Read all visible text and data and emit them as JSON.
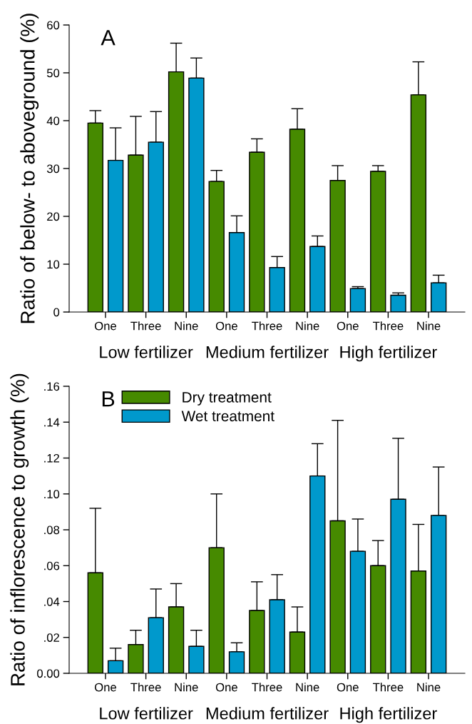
{
  "chart_data": [
    {
      "type": "bar",
      "ylabel": "Ratio of below- to aboveground (%)",
      "categories": [
        "One",
        "Three",
        "Nine",
        "One",
        "Three",
        "Nine",
        "One",
        "Three",
        "Nine"
      ],
      "series": [
        {
          "color": "#468a00",
          "values": [
            39.5,
            32.8,
            50.2,
            27.3,
            33.4,
            38.2,
            27.5,
            29.4,
            45.4
          ],
          "errors": [
            [
              39.5,
              42.1
            ],
            [
              32.8,
              40.9
            ],
            [
              50.2,
              56.2
            ],
            [
              27.3,
              29.6
            ],
            [
              33.4,
              36.2
            ],
            [
              38.2,
              42.5
            ],
            [
              27.5,
              30.6
            ],
            [
              29.4,
              30.6
            ],
            [
              45.4,
              52.3
            ]
          ]
        },
        {
          "color": "#0099cc",
          "values": [
            31.7,
            35.5,
            48.9,
            16.6,
            9.3,
            13.7,
            4.9,
            3.5,
            6.1
          ],
          "errors": [
            [
              31.7,
              38.5
            ],
            [
              35.5,
              41.9
            ],
            [
              48.9,
              53.1
            ],
            [
              16.6,
              20.1
            ],
            [
              9.3,
              11.6
            ],
            [
              13.7,
              15.9
            ],
            [
              4.9,
              5.3
            ],
            [
              3.5,
              4.0
            ],
            [
              6.1,
              7.7
            ]
          ]
        }
      ],
      "ylim": [
        0,
        60
      ],
      "yticks": [
        0,
        10,
        20,
        30,
        40,
        50,
        60
      ],
      "annotations": [
        "A",
        "Low fertilizer",
        "Medium fertilizer",
        "High fertilizer"
      ]
    },
    {
      "type": "bar",
      "ylabel": "Ratio of inflorescence to growth (%)",
      "categories": [
        "One",
        "Three",
        "Nine",
        "One",
        "Three",
        "Nine",
        "One",
        "Three",
        "Nine"
      ],
      "series": [
        {
          "name": "Dry treatment",
          "color": "#468a00",
          "values": [
            0.056,
            0.016,
            0.037,
            0.07,
            0.035,
            0.023,
            0.085,
            0.06,
            0.057
          ],
          "errors": [
            [
              0.056,
              0.092
            ],
            [
              0.016,
              0.024
            ],
            [
              0.037,
              0.05
            ],
            [
              0.07,
              0.1
            ],
            [
              0.035,
              0.051
            ],
            [
              0.023,
              0.037
            ],
            [
              0.085,
              0.141
            ],
            [
              0.06,
              0.074
            ],
            [
              0.057,
              0.083
            ]
          ]
        },
        {
          "name": "Wet treatment",
          "color": "#0099cc",
          "values": [
            0.007,
            0.031,
            0.015,
            0.012,
            0.041,
            0.11,
            0.068,
            0.097,
            0.088
          ],
          "errors": [
            [
              0.007,
              0.014
            ],
            [
              0.031,
              0.047
            ],
            [
              0.015,
              0.024
            ],
            [
              0.012,
              0.017
            ],
            [
              0.041,
              0.055
            ],
            [
              0.11,
              0.128
            ],
            [
              0.068,
              0.086
            ],
            [
              0.097,
              0.131
            ],
            [
              0.088,
              0.115
            ]
          ]
        }
      ],
      "ylim": [
        0,
        0.16
      ],
      "yticks": [
        {
          "value": 0,
          "label": "0.00"
        },
        {
          "value": 0.02,
          "label": ".02"
        },
        {
          "value": 0.04,
          "label": ".04"
        },
        {
          "value": 0.06,
          "label": ".06"
        },
        {
          "value": 0.08,
          "label": ".08"
        },
        {
          "value": 0.1,
          "label": ".10"
        },
        {
          "value": 0.12,
          "label": ".12"
        },
        {
          "value": 0.14,
          "label": ".14"
        },
        {
          "value": 0.16,
          "label": ".16"
        }
      ],
      "legend": "top left",
      "annotations": [
        "B",
        "Low fertilizer",
        "Medium fertilizer",
        "High fertilizer"
      ]
    }
  ]
}
